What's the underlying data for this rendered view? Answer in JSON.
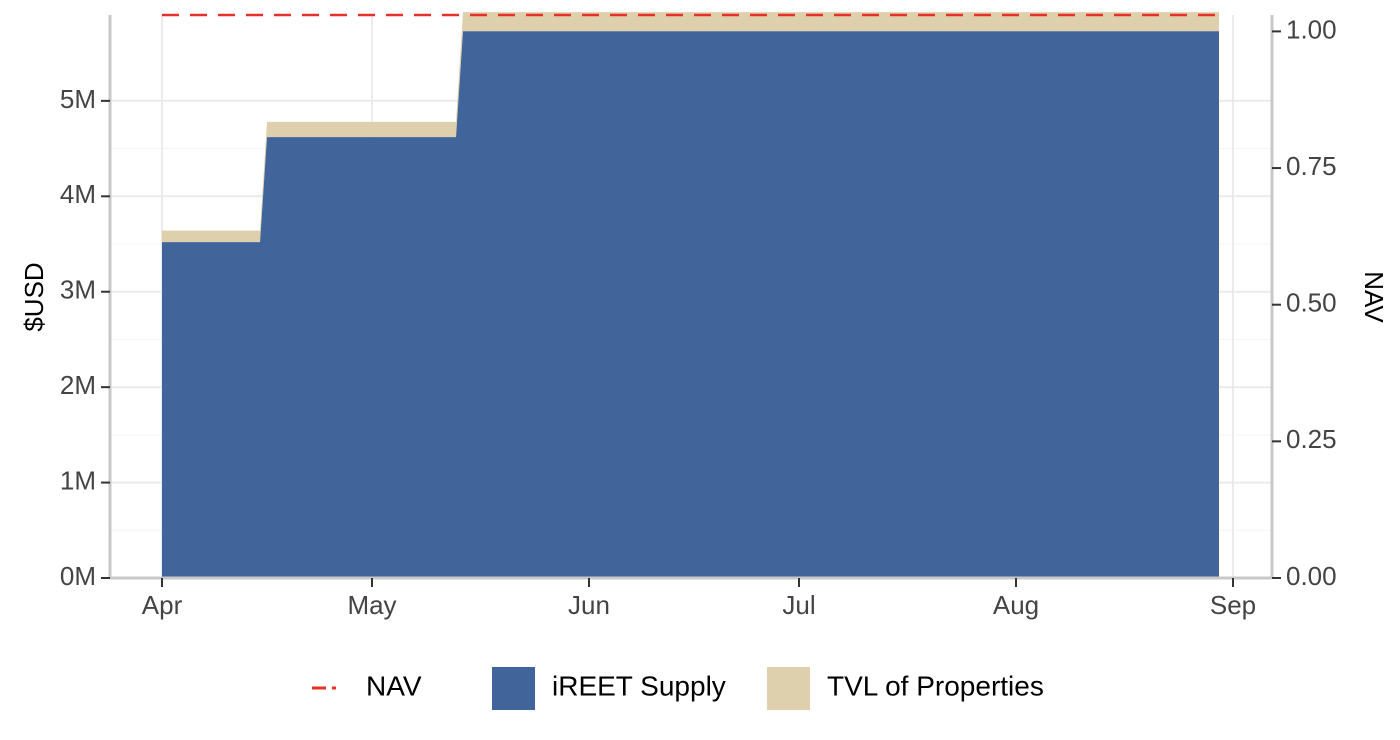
{
  "chart_data": {
    "type": "area",
    "xlabel": "",
    "ylabel": "$USD",
    "y2label": "NAV",
    "x_ticks": [
      "Apr",
      "May",
      "Jun",
      "Jul",
      "Aug",
      "Sep"
    ],
    "x_tick_dates": [
      "2024-04-01",
      "2024-05-01",
      "2024-06-01",
      "2024-07-01",
      "2024-08-01",
      "2024-09-01"
    ],
    "xlim": [
      "2024-04-01",
      "2024-09-01"
    ],
    "ylim": [
      0,
      5900000
    ],
    "y_ticks": [
      0,
      1000000,
      2000000,
      3000000,
      4000000,
      5000000
    ],
    "y_tick_labels": [
      "0M",
      "1M",
      "2M",
      "3M",
      "4M",
      "5M"
    ],
    "y2lim": [
      0,
      1.03
    ],
    "y2_ticks": [
      0,
      0.25,
      0.5,
      0.75,
      1.0
    ],
    "y2_tick_labels": [
      "0.00",
      "0.25",
      "0.50",
      "0.75",
      "1.00"
    ],
    "grid": true,
    "legend_position": "bottom",
    "series": [
      {
        "name": "iREET Supply",
        "kind": "stacked-area",
        "color": "#41649b",
        "points": [
          {
            "x": "2024-04-01",
            "y": 3520000
          },
          {
            "x": "2024-04-15",
            "y": 3520000
          },
          {
            "x": "2024-04-16",
            "y": 4620000
          },
          {
            "x": "2024-05-13",
            "y": 4620000
          },
          {
            "x": "2024-05-14",
            "y": 5730000
          },
          {
            "x": "2024-08-30",
            "y": 5730000
          }
        ]
      },
      {
        "name": "TVL of Properties",
        "kind": "stacked-area",
        "color": "#dfd0ad",
        "points": [
          {
            "x": "2024-04-01",
            "y": 120000
          },
          {
            "x": "2024-04-15",
            "y": 120000
          },
          {
            "x": "2024-04-16",
            "y": 160000
          },
          {
            "x": "2024-05-13",
            "y": 160000
          },
          {
            "x": "2024-05-14",
            "y": 200000
          },
          {
            "x": "2024-08-30",
            "y": 200000
          }
        ]
      },
      {
        "name": "NAV",
        "kind": "dashed-line",
        "axis": "right",
        "color": "#e8302a",
        "points": [
          {
            "x": "2024-04-01",
            "y": 1.03
          },
          {
            "x": "2024-08-30",
            "y": 1.03
          }
        ]
      }
    ],
    "legend": [
      {
        "label": "NAV",
        "kind": "dash",
        "color": "#e8302a"
      },
      {
        "label": "iREET Supply",
        "kind": "fill",
        "color": "#41649b"
      },
      {
        "label": "TVL of Properties",
        "kind": "fill",
        "color": "#dfd0ad"
      }
    ]
  }
}
